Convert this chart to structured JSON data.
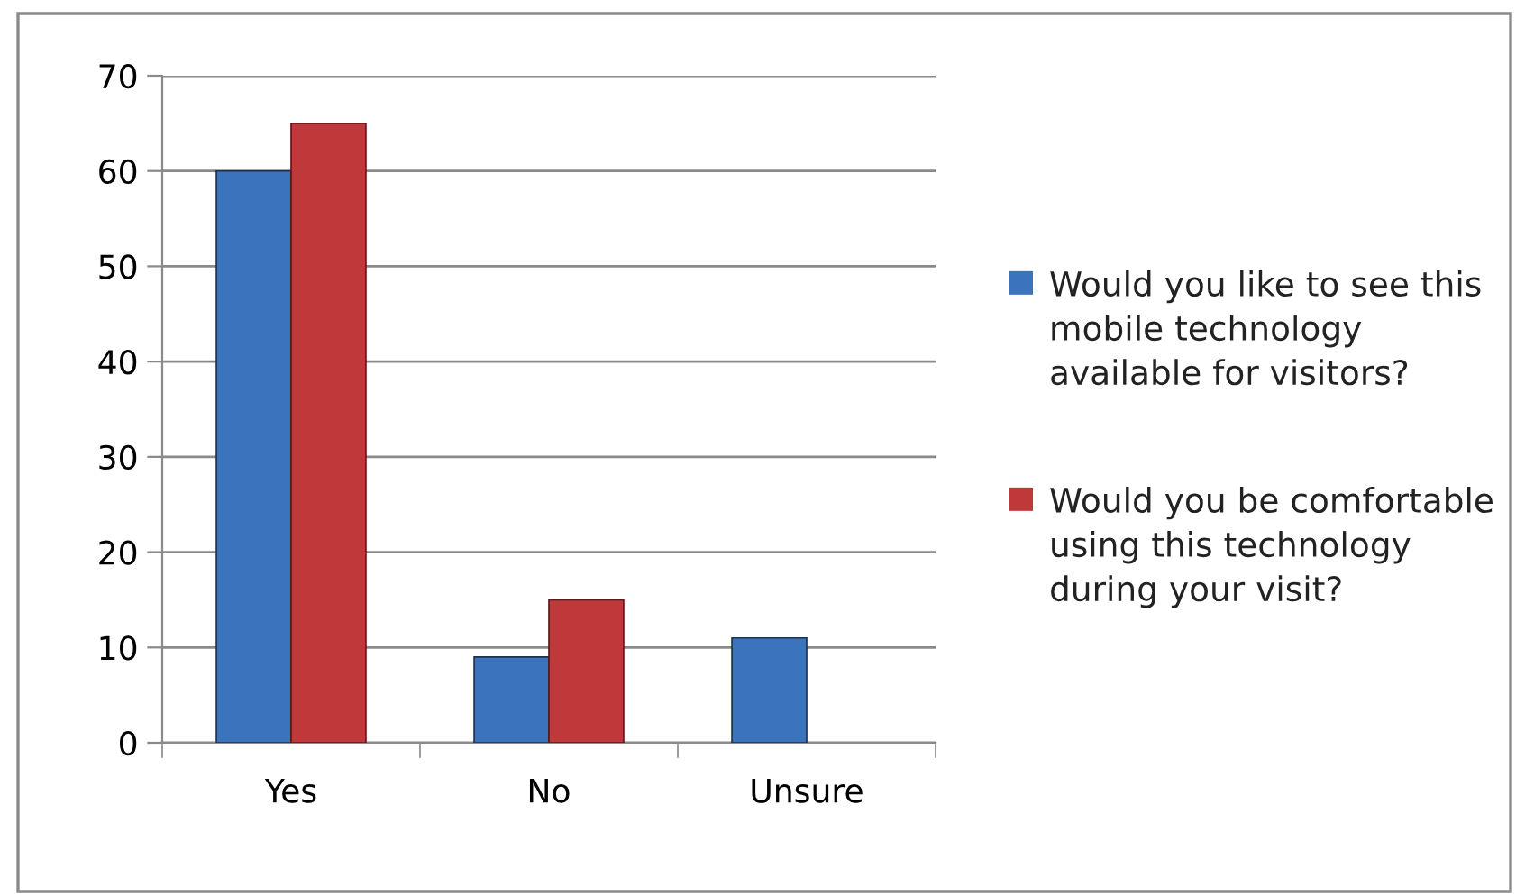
{
  "chart_data": {
    "type": "bar",
    "categories": [
      "Yes",
      "No",
      "Unsure"
    ],
    "series": [
      {
        "name": "Would you like to see this mobile technology available for visitors?",
        "color": "#3b73bd",
        "values": [
          60,
          9,
          11
        ]
      },
      {
        "name": "Would you be comfortable using this technology during your visit?",
        "color": "#c0393a",
        "values": [
          65,
          15,
          null
        ]
      }
    ],
    "ylim": [
      0,
      70
    ],
    "yticks": [
      0,
      10,
      20,
      30,
      40,
      50,
      60,
      70
    ],
    "grid": "y",
    "legend": "right"
  }
}
